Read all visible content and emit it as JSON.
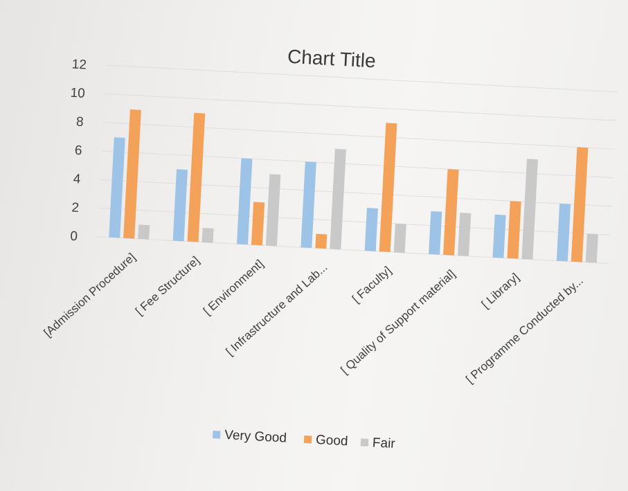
{
  "chart_data": {
    "type": "bar",
    "title": "Chart Title",
    "xlabel": "",
    "ylabel": "",
    "ylim": [
      0,
      12
    ],
    "yticks": [
      0,
      2,
      4,
      6,
      8,
      10,
      12
    ],
    "grid": true,
    "legend_position": "bottom",
    "categories": [
      "[Admission Procedure]",
      "[ Fee Structure]",
      "[ Environment]",
      "[ Infrastructure and Lab...",
      "[ Faculty]",
      "[ Quality of Support material]",
      "[ Library]",
      "[ Programme Conducted by..."
    ],
    "series": [
      {
        "name": "Very Good",
        "color": "#9dc3e6",
        "values": [
          7,
          5,
          6,
          6,
          3,
          3,
          3,
          4
        ]
      },
      {
        "name": "Good",
        "color": "#f4a25a",
        "values": [
          9,
          9,
          3,
          1,
          9,
          6,
          4,
          8
        ]
      },
      {
        "name": "Fair",
        "color": "#c9c9c9",
        "values": [
          1,
          1,
          5,
          7,
          2,
          3,
          7,
          2
        ]
      }
    ]
  }
}
